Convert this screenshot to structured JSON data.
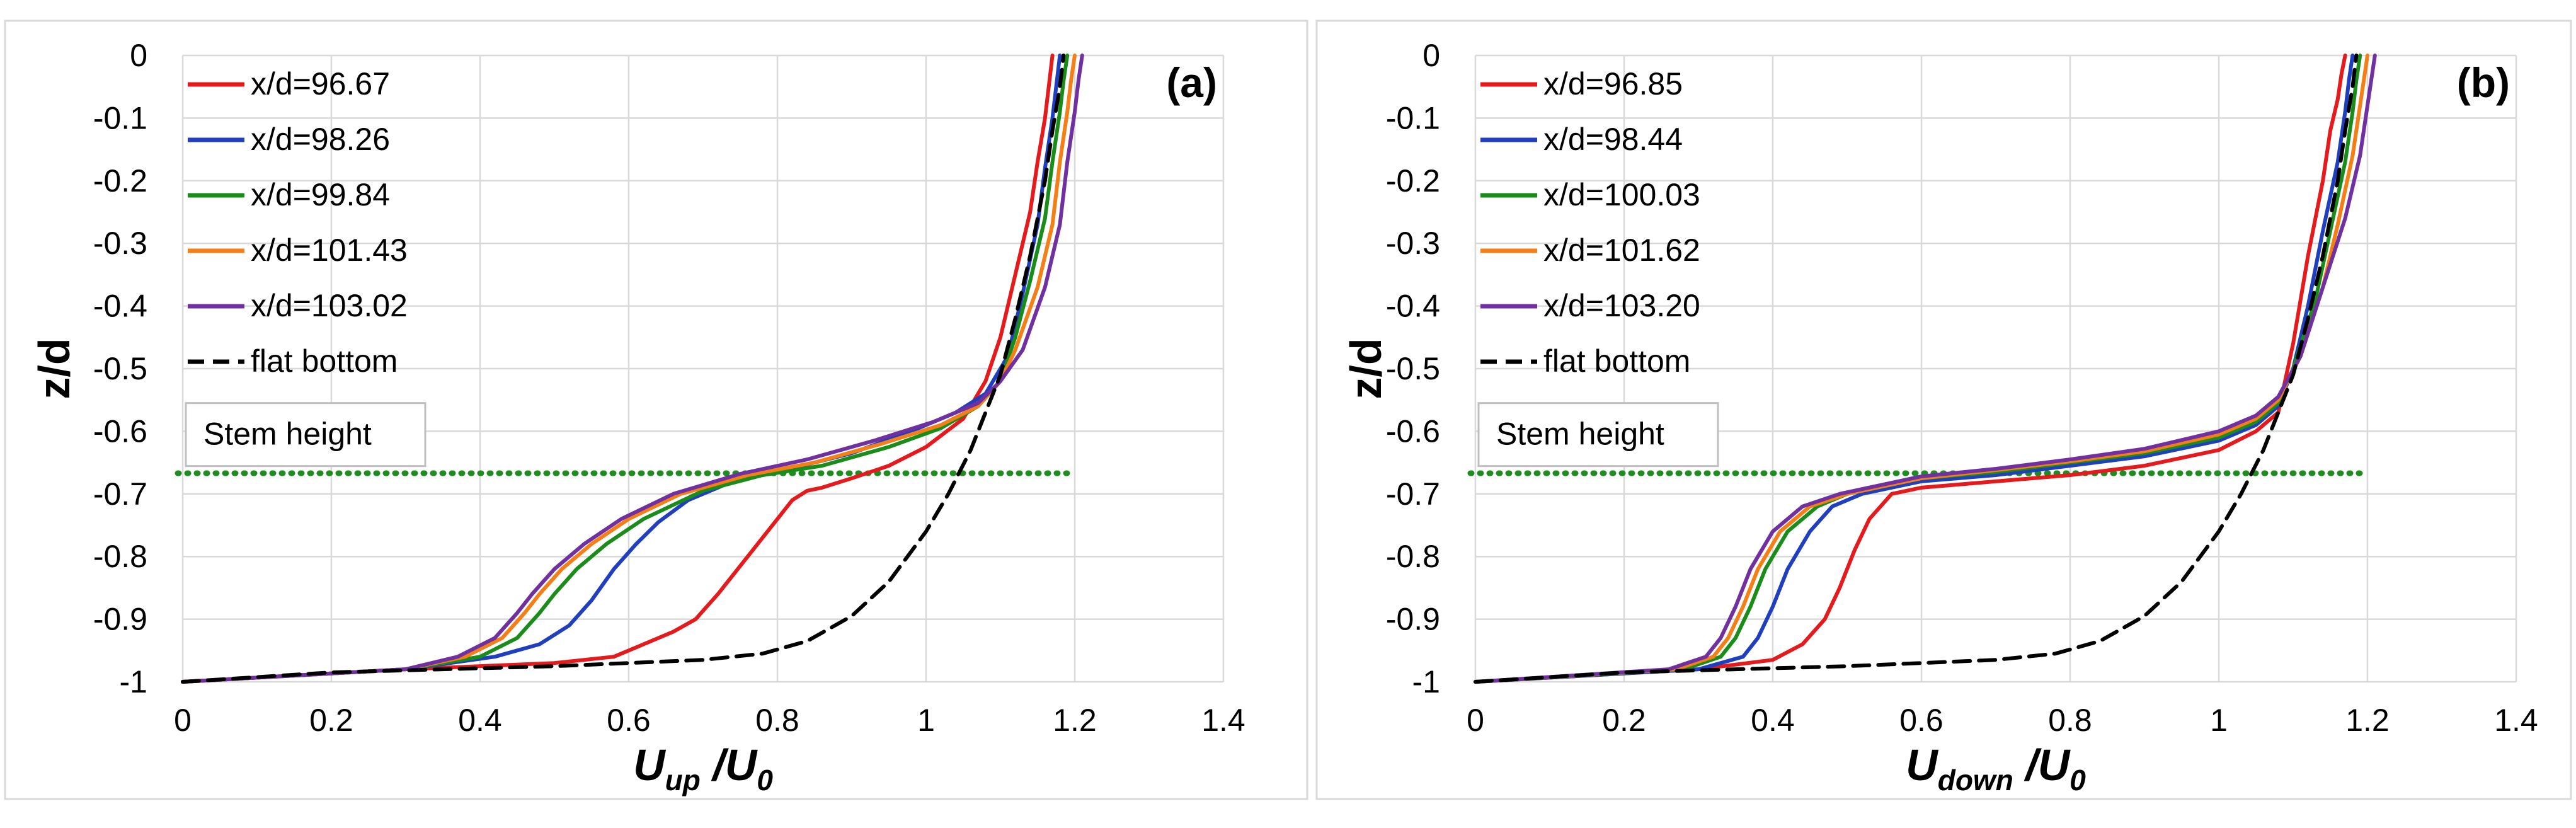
{
  "chart_data": [
    {
      "type": "line",
      "panel_label": "(a)",
      "xlabel": {
        "main": "U",
        "sub": "up",
        "rest": " /U",
        "sub2": "0"
      },
      "ylabel": "z/d",
      "xlim": [
        0,
        1.4
      ],
      "ylim": [
        -1,
        0
      ],
      "xticks": [
        0,
        0.2,
        0.4,
        0.6,
        0.8,
        1,
        1.2,
        1.4
      ],
      "xtick_labels": [
        "0",
        "0.2",
        "0.4",
        "0.6",
        "0.8",
        "1",
        "1.2",
        "1.4"
      ],
      "yticks": [
        0,
        -0.1,
        -0.2,
        -0.3,
        -0.4,
        -0.5,
        -0.6,
        -0.7,
        -0.8,
        -0.9,
        -1
      ],
      "ytick_labels": [
        "0",
        "-0.1",
        "-0.2",
        "-0.3",
        "-0.4",
        "-0.5",
        "-0.6",
        "-0.7",
        "-0.8",
        "-0.9",
        "-1"
      ],
      "grid": true,
      "legend_position": "top-left",
      "stem_label": "Stem height",
      "stem_z": -0.667,
      "stem_color": "#1e8c1e",
      "series": [
        {
          "name": "x/d=96.67",
          "color": "#e41a1c",
          "dash": "solid",
          "x": [
            0.0,
            0.3,
            0.5,
            0.58,
            0.62,
            0.66,
            0.69,
            0.72,
            0.76,
            0.8,
            0.82,
            0.84,
            0.86,
            0.9,
            0.95,
            1.0,
            1.05,
            1.08,
            1.1,
            1.12,
            1.14,
            1.15,
            1.16,
            1.165,
            1.17
          ],
          "y": [
            -1,
            -0.98,
            -0.97,
            -0.96,
            -0.94,
            -0.92,
            -0.9,
            -0.86,
            -0.8,
            -0.74,
            -0.71,
            -0.695,
            -0.69,
            -0.675,
            -0.655,
            -0.625,
            -0.58,
            -0.52,
            -0.45,
            -0.35,
            -0.25,
            -0.17,
            -0.1,
            -0.05,
            0.0
          ]
        },
        {
          "name": "x/d=98.26",
          "color": "#1f3fbf",
          "dash": "solid",
          "x": [
            0.0,
            0.3,
            0.42,
            0.48,
            0.52,
            0.55,
            0.58,
            0.61,
            0.64,
            0.68,
            0.74,
            0.8,
            0.9,
            0.98,
            1.04,
            1.08,
            1.11,
            1.13,
            1.15,
            1.16,
            1.17,
            1.175,
            1.18
          ],
          "y": [
            -1,
            -0.98,
            -0.96,
            -0.94,
            -0.91,
            -0.87,
            -0.82,
            -0.78,
            -0.745,
            -0.71,
            -0.68,
            -0.665,
            -0.635,
            -0.6,
            -0.57,
            -0.54,
            -0.48,
            -0.38,
            -0.27,
            -0.18,
            -0.1,
            -0.05,
            0.0
          ]
        },
        {
          "name": "x/d=99.84",
          "color": "#1a8c1a",
          "dash": "solid",
          "x": [
            0.0,
            0.3,
            0.4,
            0.45,
            0.48,
            0.5,
            0.53,
            0.57,
            0.62,
            0.7,
            0.78,
            0.86,
            0.95,
            1.02,
            1.07,
            1.1,
            1.12,
            1.14,
            1.16,
            1.17,
            1.18,
            1.185,
            1.19
          ],
          "y": [
            -1,
            -0.98,
            -0.96,
            -0.93,
            -0.89,
            -0.86,
            -0.82,
            -0.78,
            -0.74,
            -0.695,
            -0.67,
            -0.655,
            -0.625,
            -0.595,
            -0.56,
            -0.52,
            -0.45,
            -0.36,
            -0.26,
            -0.17,
            -0.09,
            -0.04,
            0.0
          ]
        },
        {
          "name": "x/d=101.43",
          "color": "#f57f17",
          "dash": "solid",
          "x": [
            0.0,
            0.3,
            0.38,
            0.43,
            0.46,
            0.48,
            0.51,
            0.55,
            0.6,
            0.67,
            0.76,
            0.85,
            0.94,
            1.02,
            1.07,
            1.1,
            1.12,
            1.15,
            1.17,
            1.18,
            1.19,
            1.195,
            1.2
          ],
          "y": [
            -1,
            -0.98,
            -0.96,
            -0.93,
            -0.89,
            -0.86,
            -0.82,
            -0.78,
            -0.74,
            -0.7,
            -0.67,
            -0.65,
            -0.62,
            -0.59,
            -0.56,
            -0.52,
            -0.47,
            -0.37,
            -0.27,
            -0.17,
            -0.09,
            -0.04,
            0.0
          ]
        },
        {
          "name": "x/d=103.02",
          "color": "#7030a0",
          "dash": "solid",
          "x": [
            0.0,
            0.3,
            0.37,
            0.42,
            0.45,
            0.47,
            0.5,
            0.54,
            0.59,
            0.66,
            0.75,
            0.84,
            0.93,
            1.01,
            1.07,
            1.1,
            1.13,
            1.16,
            1.18,
            1.19,
            1.2,
            1.205,
            1.21
          ],
          "y": [
            -1,
            -0.98,
            -0.96,
            -0.93,
            -0.89,
            -0.86,
            -0.82,
            -0.78,
            -0.74,
            -0.7,
            -0.668,
            -0.645,
            -0.615,
            -0.585,
            -0.555,
            -0.52,
            -0.47,
            -0.37,
            -0.27,
            -0.17,
            -0.09,
            -0.04,
            0.0
          ]
        },
        {
          "name": "flat bottom",
          "color": "#000000",
          "dash": "dashed",
          "x": [
            0.0,
            0.2,
            0.5,
            0.7,
            0.78,
            0.84,
            0.9,
            0.95,
            1.0,
            1.03,
            1.06,
            1.08,
            1.1,
            1.12,
            1.14,
            1.16,
            1.17,
            1.18,
            1.185
          ],
          "y": [
            -1,
            -0.985,
            -0.975,
            -0.965,
            -0.955,
            -0.935,
            -0.895,
            -0.84,
            -0.76,
            -0.7,
            -0.63,
            -0.57,
            -0.51,
            -0.42,
            -0.32,
            -0.2,
            -0.12,
            -0.05,
            0.0
          ]
        }
      ]
    },
    {
      "type": "line",
      "panel_label": "(b)",
      "xlabel": {
        "main": "U",
        "sub": "down",
        "rest": " /U",
        "sub2": "0"
      },
      "ylabel": "z/d",
      "xlim": [
        0,
        1.4
      ],
      "ylim": [
        -1,
        0
      ],
      "xticks": [
        0,
        0.2,
        0.4,
        0.6,
        0.8,
        1,
        1.2,
        1.4
      ],
      "xtick_labels": [
        "0",
        "0.2",
        "0.4",
        "0.6",
        "0.8",
        "1",
        "1.2",
        "1.4"
      ],
      "yticks": [
        0,
        -0.1,
        -0.2,
        -0.3,
        -0.4,
        -0.5,
        -0.6,
        -0.7,
        -0.8,
        -0.9,
        -1
      ],
      "ytick_labels": [
        "0",
        "-0.1",
        "-0.2",
        "-0.3",
        "-0.4",
        "-0.5",
        "-0.6",
        "-0.7",
        "-0.8",
        "-0.9",
        "-1"
      ],
      "grid": true,
      "legend_position": "top-left",
      "stem_label": "Stem height",
      "stem_z": -0.667,
      "stem_color": "#1e8c1e",
      "series": [
        {
          "name": "x/d=96.85",
          "color": "#e41a1c",
          "dash": "solid",
          "x": [
            0.0,
            0.3,
            0.4,
            0.44,
            0.47,
            0.49,
            0.51,
            0.53,
            0.56,
            0.6,
            0.7,
            0.8,
            0.9,
            1.0,
            1.05,
            1.08,
            1.1,
            1.12,
            1.14,
            1.15,
            1.16,
            1.165,
            1.17
          ],
          "y": [
            -1,
            -0.98,
            -0.965,
            -0.94,
            -0.9,
            -0.85,
            -0.79,
            -0.74,
            -0.7,
            -0.69,
            -0.68,
            -0.67,
            -0.655,
            -0.63,
            -0.6,
            -0.57,
            -0.46,
            -0.32,
            -0.2,
            -0.12,
            -0.07,
            -0.03,
            0.0
          ]
        },
        {
          "name": "x/d=98.44",
          "color": "#1f3fbf",
          "dash": "solid",
          "x": [
            0.0,
            0.3,
            0.36,
            0.38,
            0.4,
            0.42,
            0.45,
            0.48,
            0.52,
            0.6,
            0.7,
            0.8,
            0.9,
            1.0,
            1.05,
            1.08,
            1.1,
            1.12,
            1.14,
            1.16,
            1.17,
            1.175,
            1.18
          ],
          "y": [
            -1,
            -0.98,
            -0.96,
            -0.93,
            -0.88,
            -0.82,
            -0.76,
            -0.72,
            -0.7,
            -0.68,
            -0.67,
            -0.655,
            -0.64,
            -0.615,
            -0.59,
            -0.56,
            -0.5,
            -0.4,
            -0.28,
            -0.17,
            -0.09,
            -0.04,
            0.0
          ]
        },
        {
          "name": "x/d=100.03",
          "color": "#1a8c1a",
          "dash": "solid",
          "x": [
            0.0,
            0.28,
            0.33,
            0.35,
            0.37,
            0.39,
            0.42,
            0.46,
            0.5,
            0.6,
            0.7,
            0.8,
            0.9,
            1.0,
            1.05,
            1.08,
            1.1,
            1.13,
            1.15,
            1.17,
            1.18,
            1.185,
            1.19
          ],
          "y": [
            -1,
            -0.98,
            -0.96,
            -0.93,
            -0.88,
            -0.82,
            -0.76,
            -0.72,
            -0.7,
            -0.675,
            -0.665,
            -0.65,
            -0.635,
            -0.61,
            -0.585,
            -0.555,
            -0.5,
            -0.39,
            -0.28,
            -0.17,
            -0.09,
            -0.04,
            0.0
          ]
        },
        {
          "name": "x/d=101.62",
          "color": "#f57f17",
          "dash": "solid",
          "x": [
            0.0,
            0.27,
            0.32,
            0.34,
            0.36,
            0.38,
            0.41,
            0.45,
            0.5,
            0.6,
            0.7,
            0.8,
            0.9,
            1.0,
            1.05,
            1.08,
            1.11,
            1.14,
            1.16,
            1.18,
            1.19,
            1.195,
            1.2
          ],
          "y": [
            -1,
            -0.98,
            -0.96,
            -0.93,
            -0.88,
            -0.82,
            -0.76,
            -0.72,
            -0.7,
            -0.675,
            -0.662,
            -0.648,
            -0.632,
            -0.605,
            -0.58,
            -0.55,
            -0.48,
            -0.37,
            -0.27,
            -0.16,
            -0.08,
            -0.04,
            0.0
          ]
        },
        {
          "name": "x/d=103.20",
          "color": "#7030a0",
          "dash": "solid",
          "x": [
            0.0,
            0.26,
            0.31,
            0.33,
            0.35,
            0.37,
            0.4,
            0.44,
            0.49,
            0.6,
            0.7,
            0.8,
            0.9,
            1.0,
            1.05,
            1.08,
            1.11,
            1.14,
            1.17,
            1.19,
            1.2,
            1.205,
            1.21
          ],
          "y": [
            -1,
            -0.98,
            -0.96,
            -0.93,
            -0.88,
            -0.82,
            -0.76,
            -0.72,
            -0.7,
            -0.672,
            -0.66,
            -0.645,
            -0.628,
            -0.6,
            -0.575,
            -0.545,
            -0.48,
            -0.37,
            -0.26,
            -0.16,
            -0.08,
            -0.04,
            0.0
          ]
        },
        {
          "name": "flat bottom",
          "color": "#000000",
          "dash": "dashed",
          "x": [
            0.0,
            0.2,
            0.5,
            0.7,
            0.78,
            0.84,
            0.9,
            0.95,
            1.0,
            1.03,
            1.06,
            1.08,
            1.1,
            1.12,
            1.14,
            1.16,
            1.17,
            1.18,
            1.185
          ],
          "y": [
            -1,
            -0.985,
            -0.975,
            -0.965,
            -0.955,
            -0.935,
            -0.895,
            -0.84,
            -0.76,
            -0.7,
            -0.63,
            -0.57,
            -0.51,
            -0.42,
            -0.32,
            -0.2,
            -0.12,
            -0.05,
            0.0
          ]
        }
      ]
    }
  ]
}
